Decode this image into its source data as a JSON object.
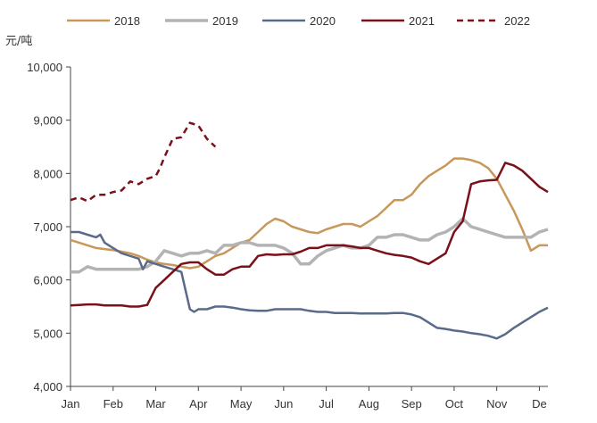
{
  "chart_data": {
    "type": "line",
    "unit_label": "元/吨",
    "ylim": [
      4000,
      10000
    ],
    "y_ticks": [
      4000,
      5000,
      6000,
      7000,
      8000,
      9000,
      10000
    ],
    "y_tick_labels": [
      "4,000",
      "5,000",
      "6,000",
      "7,000",
      "8,000",
      "9,000",
      "10,000"
    ],
    "xlim": [
      0,
      11.2
    ],
    "x_tick_labels": [
      "Jan",
      "Feb",
      "Mar",
      "Apr",
      "May",
      "Jun",
      "Jul",
      "Aug",
      "Sep",
      "Oct",
      "Nov",
      "De"
    ],
    "grid": false,
    "legend_position": "top",
    "series": [
      {
        "name": "2018",
        "color": "#c8975a",
        "dash": "solid",
        "x": [
          0.0,
          0.2,
          0.4,
          0.6,
          0.8,
          1.0,
          1.2,
          1.4,
          1.6,
          1.8,
          2.0,
          2.2,
          2.4,
          2.6,
          2.8,
          3.0,
          3.2,
          3.4,
          3.6,
          3.8,
          4.0,
          4.2,
          4.4,
          4.6,
          4.8,
          5.0,
          5.2,
          5.4,
          5.6,
          5.8,
          6.0,
          6.2,
          6.4,
          6.6,
          6.8,
          7.0,
          7.2,
          7.4,
          7.6,
          7.8,
          8.0,
          8.2,
          8.4,
          8.6,
          8.8,
          9.0,
          9.2,
          9.4,
          9.6,
          9.8,
          10.0,
          10.2,
          10.4,
          10.6,
          10.8,
          11.0,
          11.2
        ],
        "y": [
          6750,
          6700,
          6650,
          6600,
          6580,
          6560,
          6530,
          6500,
          6450,
          6380,
          6330,
          6300,
          6280,
          6250,
          6220,
          6250,
          6350,
          6450,
          6500,
          6600,
          6700,
          6750,
          6900,
          7050,
          7150,
          7100,
          7000,
          6950,
          6900,
          6880,
          6950,
          7000,
          7050,
          7050,
          7000,
          7100,
          7200,
          7350,
          7500,
          7500,
          7600,
          7800,
          7950,
          8050,
          8150,
          8280,
          8280,
          8250,
          8200,
          8100,
          7900,
          7600,
          7300,
          6950,
          6550,
          6650,
          6650
        ]
      },
      {
        "name": "2019",
        "color": "#b3b3b3",
        "dash": "solid",
        "x": [
          0.0,
          0.2,
          0.4,
          0.6,
          0.8,
          1.0,
          1.2,
          1.4,
          1.6,
          1.8,
          2.0,
          2.2,
          2.4,
          2.6,
          2.8,
          3.0,
          3.2,
          3.4,
          3.6,
          3.8,
          4.0,
          4.2,
          4.4,
          4.6,
          4.8,
          5.0,
          5.2,
          5.4,
          5.6,
          5.8,
          6.0,
          6.2,
          6.4,
          6.6,
          6.8,
          7.0,
          7.2,
          7.4,
          7.6,
          7.8,
          8.0,
          8.2,
          8.4,
          8.6,
          8.8,
          9.0,
          9.2,
          9.4,
          9.6,
          9.8,
          10.0,
          10.2,
          10.4,
          10.6,
          10.8,
          11.0,
          11.2
        ],
        "y": [
          6150,
          6150,
          6250,
          6200,
          6200,
          6200,
          6200,
          6200,
          6200,
          6250,
          6350,
          6550,
          6500,
          6450,
          6500,
          6500,
          6550,
          6500,
          6650,
          6650,
          6700,
          6700,
          6650,
          6650,
          6650,
          6600,
          6500,
          6300,
          6300,
          6450,
          6550,
          6600,
          6650,
          6600,
          6600,
          6650,
          6800,
          6800,
          6850,
          6850,
          6800,
          6750,
          6750,
          6850,
          6900,
          7000,
          7150,
          7000,
          6950,
          6900,
          6850,
          6800,
          6800,
          6800,
          6800,
          6900,
          6950
        ]
      },
      {
        "name": "2020",
        "color": "#5a6a8a",
        "dash": "solid",
        "x": [
          0.0,
          0.2,
          0.4,
          0.6,
          0.7,
          0.8,
          1.0,
          1.2,
          1.4,
          1.6,
          1.7,
          1.8,
          2.0,
          2.2,
          2.4,
          2.6,
          2.8,
          2.9,
          3.0,
          3.2,
          3.4,
          3.6,
          3.8,
          4.0,
          4.2,
          4.4,
          4.6,
          4.8,
          5.0,
          5.2,
          5.4,
          5.6,
          5.8,
          6.0,
          6.2,
          6.4,
          6.6,
          6.8,
          7.0,
          7.2,
          7.4,
          7.6,
          7.8,
          8.0,
          8.2,
          8.4,
          8.6,
          8.8,
          9.0,
          9.2,
          9.4,
          9.6,
          9.8,
          10.0,
          10.2,
          10.4,
          10.6,
          10.8,
          11.0,
          11.2
        ],
        "y": [
          6900,
          6900,
          6850,
          6800,
          6850,
          6700,
          6600,
          6500,
          6450,
          6400,
          6200,
          6350,
          6300,
          6250,
          6200,
          6150,
          5450,
          5400,
          5450,
          5450,
          5500,
          5500,
          5480,
          5450,
          5430,
          5420,
          5420,
          5450,
          5450,
          5450,
          5450,
          5420,
          5400,
          5400,
          5380,
          5380,
          5380,
          5370,
          5370,
          5370,
          5370,
          5380,
          5380,
          5350,
          5300,
          5200,
          5100,
          5080,
          5050,
          5030,
          5000,
          4980,
          4950,
          4900,
          4980,
          5100,
          5200,
          5300,
          5400,
          5480
        ]
      },
      {
        "name": "2021",
        "color": "#7a1018",
        "dash": "solid",
        "x": [
          0.0,
          0.2,
          0.4,
          0.6,
          0.8,
          1.0,
          1.2,
          1.4,
          1.6,
          1.8,
          2.0,
          2.2,
          2.4,
          2.6,
          2.8,
          3.0,
          3.2,
          3.4,
          3.6,
          3.8,
          4.0,
          4.2,
          4.4,
          4.6,
          4.8,
          5.0,
          5.2,
          5.4,
          5.6,
          5.8,
          6.0,
          6.2,
          6.4,
          6.6,
          6.8,
          7.0,
          7.2,
          7.4,
          7.6,
          7.8,
          8.0,
          8.2,
          8.4,
          8.6,
          8.8,
          9.0,
          9.2,
          9.4,
          9.6,
          9.8,
          10.0,
          10.2,
          10.4,
          10.6,
          10.8,
          11.0,
          11.2
        ],
        "y": [
          5520,
          5530,
          5540,
          5540,
          5520,
          5520,
          5520,
          5500,
          5500,
          5530,
          5850,
          6000,
          6150,
          6300,
          6330,
          6330,
          6200,
          6100,
          6100,
          6200,
          6250,
          6250,
          6450,
          6480,
          6470,
          6480,
          6480,
          6530,
          6600,
          6600,
          6650,
          6650,
          6650,
          6630,
          6600,
          6600,
          6550,
          6500,
          6470,
          6450,
          6420,
          6350,
          6300,
          6400,
          6500,
          6900,
          7100,
          7800,
          7850,
          7870,
          7880,
          8200,
          8150,
          8050,
          7900,
          7750,
          7650
        ]
      },
      {
        "name": "2022",
        "color": "#7a1018",
        "dash": "dashed",
        "x": [
          0.0,
          0.2,
          0.4,
          0.6,
          0.8,
          1.0,
          1.2,
          1.4,
          1.6,
          1.8,
          2.0,
          2.1,
          2.2,
          2.4,
          2.6,
          2.8,
          3.0,
          3.2,
          3.4
        ],
        "y": [
          7500,
          7550,
          7480,
          7600,
          7600,
          7650,
          7680,
          7850,
          7800,
          7900,
          7950,
          8100,
          8300,
          8650,
          8680,
          8950,
          8900,
          8650,
          8500
        ]
      }
    ]
  }
}
